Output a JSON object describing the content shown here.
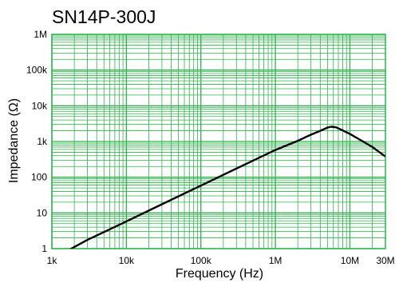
{
  "chart_data": {
    "type": "line",
    "title": "SN14P-300J",
    "xlabel": "Frequency (Hz)",
    "ylabel": "Impedance (Ω)",
    "x_scale": "log",
    "y_scale": "log",
    "xlim": [
      1000,
      30000000
    ],
    "ylim": [
      1,
      1000000
    ],
    "x_ticks": [
      {
        "value": 1000,
        "label": "1k"
      },
      {
        "value": 10000,
        "label": "10k"
      },
      {
        "value": 100000,
        "label": "100k"
      },
      {
        "value": 1000000,
        "label": "1M"
      },
      {
        "value": 10000000,
        "label": "10M"
      },
      {
        "value": 30000000,
        "label": "30M"
      }
    ],
    "y_ticks": [
      {
        "value": 1,
        "label": "1"
      },
      {
        "value": 10,
        "label": "10"
      },
      {
        "value": 100,
        "label": "100"
      },
      {
        "value": 1000,
        "label": "1k"
      },
      {
        "value": 10000,
        "label": "10k"
      },
      {
        "value": 100000,
        "label": "100k"
      },
      {
        "value": 1000000,
        "label": "1M"
      }
    ],
    "grid": true,
    "grid_color": "#2db34a",
    "line_color": "#000000",
    "series": [
      {
        "x": [
          1500,
          3000,
          10000,
          30000,
          100000,
          300000,
          1000000,
          2000000,
          3000000,
          4000000,
          5000000,
          5600000,
          6500000,
          8000000,
          10000000,
          15000000,
          20000000,
          30000000
        ],
        "y": [
          0.8,
          1.75,
          5.8,
          17.5,
          58,
          175,
          580,
          1050,
          1550,
          2000,
          2450,
          2600,
          2500,
          2050,
          1620,
          1000,
          700,
          380
        ]
      }
    ]
  }
}
